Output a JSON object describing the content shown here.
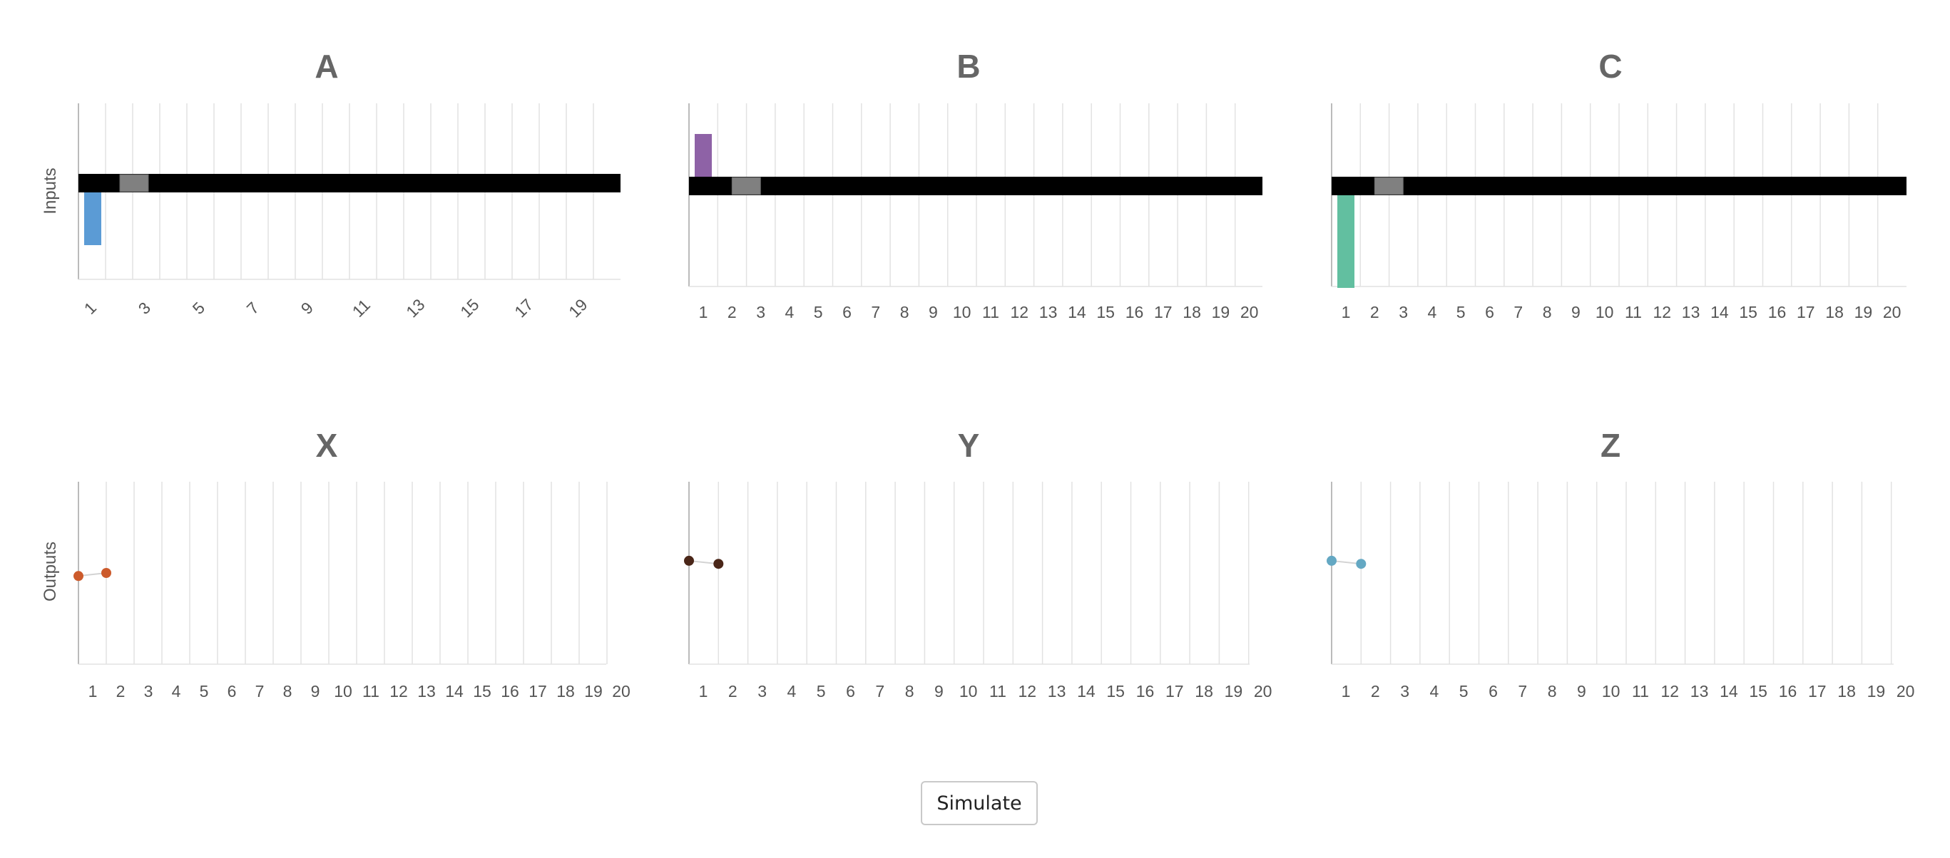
{
  "row_labels": {
    "inputs": "Inputs",
    "outputs": "Outputs"
  },
  "panels": {
    "A": {
      "title": "A"
    },
    "B": {
      "title": "B"
    },
    "C": {
      "title": "C"
    },
    "X": {
      "title": "X"
    },
    "Y": {
      "title": "Y"
    },
    "Z": {
      "title": "Z"
    }
  },
  "button": {
    "simulate": "Simulate"
  },
  "colors": {
    "A": "#5b9bd5",
    "B": "#8e62a6",
    "C": "#62bfa0",
    "X": "#cc5a2b",
    "Y": "#4a2618",
    "Z": "#64a8c3",
    "track": "#000000",
    "handle": "#808080",
    "grid": "#e2e2e2",
    "axis": "#bbbbbb"
  },
  "chart_data": [
    {
      "id": "A",
      "type": "bar",
      "title": "A",
      "x": [
        1
      ],
      "values": [
        -1
      ],
      "handle_x": 2,
      "tick_labels": [
        "1",
        "3",
        "5",
        "7",
        "9",
        "11",
        "13",
        "15",
        "17",
        "19"
      ]
    },
    {
      "id": "B",
      "type": "bar",
      "title": "B",
      "x": [
        1
      ],
      "values": [
        1
      ],
      "handle_x": 2,
      "tick_labels": [
        "1",
        "2",
        "3",
        "4",
        "5",
        "6",
        "7",
        "8",
        "9",
        "10",
        "11",
        "12",
        "13",
        "14",
        "15",
        "16",
        "17",
        "18",
        "19",
        "20"
      ]
    },
    {
      "id": "C",
      "type": "bar",
      "title": "C",
      "x": [
        1
      ],
      "values": [
        -2
      ],
      "handle_x": 2,
      "tick_labels": [
        "1",
        "2",
        "3",
        "4",
        "5",
        "6",
        "7",
        "8",
        "9",
        "10",
        "11",
        "12",
        "13",
        "14",
        "15",
        "16",
        "17",
        "18",
        "19",
        "20"
      ]
    },
    {
      "id": "X",
      "type": "line",
      "title": "X",
      "x": [
        1,
        2
      ],
      "y": [
        -0.1,
        0
      ],
      "ylim": [
        -3,
        3
      ],
      "tick_labels": [
        "1",
        "2",
        "3",
        "4",
        "5",
        "6",
        "7",
        "8",
        "9",
        "10",
        "11",
        "12",
        "13",
        "14",
        "15",
        "16",
        "17",
        "18",
        "19",
        "20"
      ]
    },
    {
      "id": "Y",
      "type": "line",
      "title": "Y",
      "x": [
        1,
        2
      ],
      "y": [
        0.4,
        0.3
      ],
      "ylim": [
        -3,
        3
      ],
      "tick_labels": [
        "1",
        "2",
        "3",
        "4",
        "5",
        "6",
        "7",
        "8",
        "9",
        "10",
        "11",
        "12",
        "13",
        "14",
        "15",
        "16",
        "17",
        "18",
        "19",
        "20"
      ]
    },
    {
      "id": "Z",
      "type": "line",
      "title": "Z",
      "x": [
        1,
        2
      ],
      "y": [
        0.4,
        0.3
      ],
      "ylim": [
        -3,
        3
      ],
      "tick_labels": [
        "1",
        "2",
        "3",
        "4",
        "5",
        "6",
        "7",
        "8",
        "9",
        "10",
        "11",
        "12",
        "13",
        "14",
        "15",
        "16",
        "17",
        "18",
        "19",
        "20"
      ]
    }
  ]
}
